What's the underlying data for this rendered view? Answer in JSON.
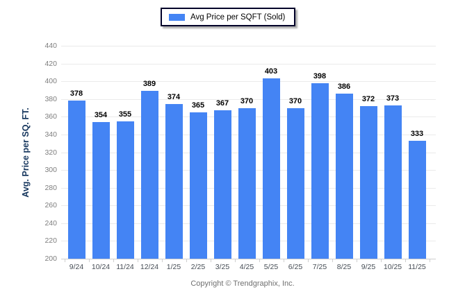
{
  "legend": {
    "label": "Avg Price per SQFT (Sold)",
    "swatch_color": "#4484f4"
  },
  "axes": {
    "y_title": "Avg. Price per SQ. FT."
  },
  "footer": {
    "copyright": "Copyright © Trendgraphix, Inc."
  },
  "colors": {
    "bar": "#4484f4",
    "gridline": "#eaeaea",
    "baseline": "#cfcfcf",
    "y_tick_text": "#7d7d7d",
    "x_tick_text": "#454c54",
    "value_text": "#000000",
    "y_title_text": "#17375e",
    "legend_border": "#000028",
    "footer_text": "#6f6f6f"
  },
  "chart_data": {
    "type": "bar",
    "title": "",
    "xlabel": "",
    "ylabel": "Avg. Price per SQ. FT.",
    "legend": [
      "Avg Price per SQFT (Sold)"
    ],
    "legend_position": "top-center",
    "grid": true,
    "ylim": [
      200,
      440
    ],
    "ytick_step": 20,
    "yticks": [
      200,
      220,
      240,
      260,
      280,
      300,
      320,
      340,
      360,
      380,
      400,
      420,
      440
    ],
    "categories": [
      "9/24",
      "10/24",
      "11/24",
      "12/24",
      "1/25",
      "2/25",
      "3/25",
      "4/25",
      "5/25",
      "6/25",
      "7/25",
      "8/25",
      "9/25",
      "10/25",
      "11/25"
    ],
    "series": [
      {
        "name": "Avg Price per SQFT (Sold)",
        "values": [
          378,
          354,
          355,
          389,
          374,
          365,
          367,
          370,
          403,
          370,
          398,
          386,
          372,
          373,
          333
        ]
      }
    ]
  }
}
